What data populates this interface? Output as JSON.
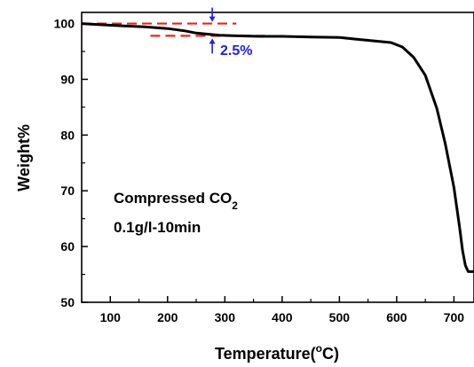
{
  "chart_data": {
    "type": "line",
    "xlabel": "Temperature(",
    "xlabel_sup": "o",
    "xlabel_tail": "C)",
    "ylabel": "Weight%",
    "xlim": [
      50,
      735
    ],
    "ylim": [
      50,
      102
    ],
    "x_ticks": [
      "100",
      "200",
      "300",
      "400",
      "500",
      "600",
      "700"
    ],
    "y_ticks": [
      "50",
      "60",
      "70",
      "80",
      "90",
      "100"
    ],
    "grid": false,
    "legend": "none",
    "series": [
      {
        "color": "#000000",
        "x": [
          50,
          80,
          120,
          160,
          200,
          230,
          250,
          270,
          290,
          320,
          360,
          400,
          450,
          500,
          530,
          560,
          590,
          610,
          630,
          650,
          670,
          685,
          700,
          710,
          715,
          720,
          725,
          735
        ],
        "y": [
          100,
          99.8,
          99.6,
          99.4,
          99.1,
          98.7,
          98.3,
          98.1,
          97.9,
          97.8,
          97.7,
          97.7,
          97.6,
          97.5,
          97.2,
          96.9,
          96.6,
          95.8,
          93.9,
          90.7,
          84.8,
          78.4,
          70.6,
          63.3,
          59.3,
          56.6,
          55.5,
          55.5
        ]
      }
    ],
    "annotations": {
      "line1": "Compressed CO",
      "line1_sub": "2",
      "line2": "0.1g/l-10min",
      "percent_label": "2.5%",
      "percent_color": "#2020e0",
      "dash_color": "#e8231f",
      "dash_upper": {
        "x": [
          50,
          320
        ],
        "y": 100
      },
      "dash_lower": {
        "x": [
          170,
          370
        ],
        "y": 97.8
      },
      "arrow_x": 278
    }
  }
}
